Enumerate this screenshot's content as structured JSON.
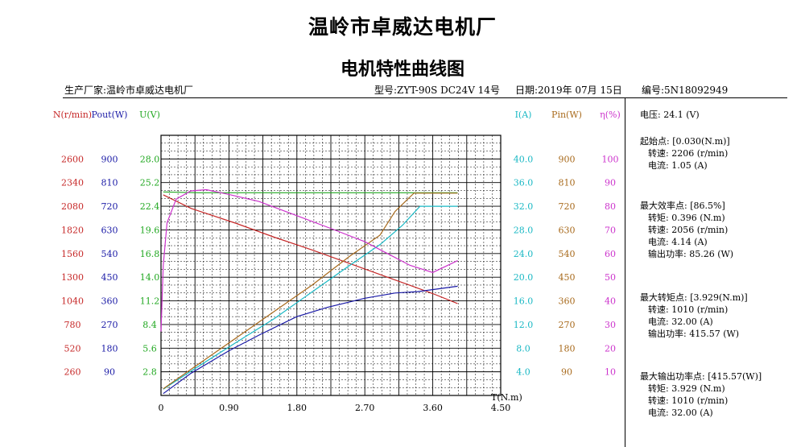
{
  "header": {
    "company": "温岭市卓威达电机厂",
    "chart_title": "电机特性曲线图",
    "manufacturer": "生产厂家:温岭市卓威达电机厂",
    "model": "型号:ZYT-90S DC24V 14号",
    "date": "日期:2019年 07月 15日",
    "serial": "编号:5N18092949"
  },
  "panel": {
    "voltage": "电压:   24.1 (V)",
    "start_point": {
      "title": "起始点: [0.030(N.m)]",
      "speed": "转速: 2206 (r/min)",
      "current": "电流: 1.05 (A)"
    },
    "max_efficiency": {
      "title": "最大效率点: [86.5%]",
      "torque": "转矩: 0.396 (N.m)",
      "speed": "转速: 2056 (r/min)",
      "current": "电流: 4.14 (A)",
      "power": "输出功率: 85.26 (W)"
    },
    "max_torque": {
      "title": "最大转矩点: [3.929(N.m)]",
      "speed": "转速: 1010 (r/min)",
      "current": "电流: 32.00 (A)",
      "power": "输出功率: 415.57 (W)"
    },
    "max_power": {
      "title": "最大输出功率点: [415.57(W)]",
      "torque": "转矩: 3.929 (N.m)",
      "speed": "转速: 1010 (r/min)",
      "current": "电流: 32.00 (A)"
    }
  },
  "chart_data": {
    "type": "line",
    "xlabel": "T(N.m)",
    "x_ticks": [
      "0",
      "0.90",
      "1.80",
      "2.70",
      "3.60",
      "4.50"
    ],
    "xlim": [
      0,
      4.5
    ],
    "grid": true,
    "axes": {
      "left": [
        {
          "key": "N",
          "label": "N(r/min)",
          "color": "#c62828",
          "range": [
            0,
            2860
          ],
          "ticks": [
            "260",
            "520",
            "780",
            "1040",
            "1300",
            "1560",
            "1820",
            "2080",
            "2340",
            "2600"
          ]
        },
        {
          "key": "Pout",
          "label": "Pout(W)",
          "color": "#1a1aa6",
          "range": [
            0,
            990
          ],
          "ticks": [
            "90",
            "180",
            "270",
            "360",
            "450",
            "540",
            "630",
            "720",
            "810",
            "900"
          ]
        },
        {
          "key": "U",
          "label": "U(V)",
          "color": "#21a821",
          "range": [
            0,
            30.8
          ],
          "ticks": [
            "2.8",
            "5.6",
            "8.4",
            "11.2",
            "14.0",
            "16.8",
            "19.6",
            "22.4",
            "25.2",
            "28.0"
          ]
        }
      ],
      "right": [
        {
          "key": "I",
          "label": "I(A)",
          "color": "#19b8c4",
          "range": [
            0,
            44
          ],
          "ticks": [
            "4.0",
            "8.0",
            "12.0",
            "16.0",
            "20.0",
            "24.0",
            "28.0",
            "32.0",
            "36.0",
            "40.0"
          ]
        },
        {
          "key": "Pin",
          "label": "Pin(W)",
          "color": "#a86a1c",
          "range": [
            0,
            990
          ],
          "ticks": [
            "90",
            "180",
            "270",
            "360",
            "450",
            "540",
            "630",
            "720",
            "810",
            "900"
          ]
        },
        {
          "key": "eta",
          "label": "η(%)",
          "color": "#cc33cc",
          "range": [
            0,
            110
          ],
          "ticks": [
            "10",
            "20",
            "30",
            "40",
            "50",
            "60",
            "70",
            "80",
            "90",
            "100"
          ]
        }
      ]
    },
    "series": [
      {
        "axis": "N",
        "color": "#c62828",
        "x": [
          0.03,
          0.4,
          1.0,
          1.5,
          2.0,
          2.5,
          3.0,
          3.3,
          3.6,
          3.929
        ],
        "values": [
          2206,
          2056,
          1890,
          1740,
          1600,
          1450,
          1300,
          1210,
          1120,
          1010
        ]
      },
      {
        "axis": "Pout",
        "color": "#1a1aa6",
        "x": [
          0.03,
          0.4,
          0.9,
          1.3,
          1.8,
          2.2,
          2.7,
          3.1,
          3.4,
          3.929
        ],
        "values": [
          7,
          85,
          170,
          230,
          300,
          335,
          370,
          390,
          395,
          415.57
        ]
      },
      {
        "axis": "U",
        "color": "#21a821",
        "x": [
          0.03,
          0.5,
          1.0,
          2.0,
          2.7,
          3.2,
          3.5,
          3.929
        ],
        "values": [
          24.1,
          24.0,
          24.0,
          24.0,
          24.0,
          24.0,
          24.0,
          24.0
        ]
      },
      {
        "axis": "I",
        "color": "#19b8c4",
        "x": [
          0.03,
          0.4,
          1.0,
          1.5,
          2.0,
          2.5,
          2.9,
          3.2,
          3.43,
          3.929
        ],
        "values": [
          1.05,
          4.14,
          9.0,
          13.0,
          17.5,
          22.0,
          25.5,
          28.8,
          32.0,
          32.0
        ]
      },
      {
        "axis": "Pin",
        "color": "#a86a1c",
        "x": [
          0.03,
          0.4,
          1.0,
          1.5,
          2.0,
          2.5,
          2.9,
          3.1,
          3.35,
          3.929
        ],
        "values": [
          25,
          100,
          220,
          320,
          420,
          530,
          610,
          700,
          770,
          770
        ]
      },
      {
        "axis": "eta",
        "color": "#cc33cc",
        "x": [
          0.0,
          0.03,
          0.08,
          0.2,
          0.396,
          0.6,
          0.9,
          1.3,
          1.8,
          2.3,
          2.7,
          3.0,
          3.3,
          3.6,
          3.929
        ],
        "values": [
          27,
          55,
          73,
          83,
          86.5,
          87,
          85,
          82,
          76,
          70,
          65,
          60,
          55,
          52,
          57
        ]
      }
    ]
  }
}
